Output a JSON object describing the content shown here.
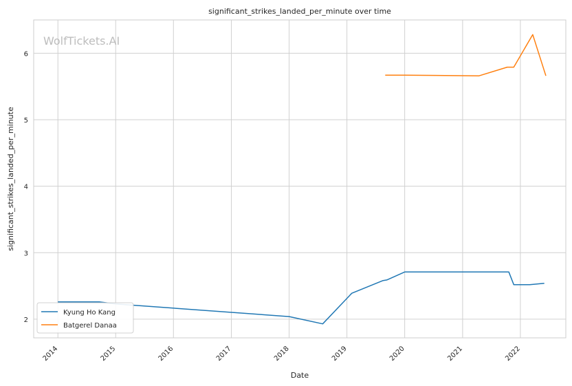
{
  "chart_data": {
    "type": "line",
    "title": "significant_strikes_landed_per_minute over time",
    "xlabel": "Date",
    "ylabel": "significant_strikes_landed_per_minute",
    "xlim": [
      "2013-08-01",
      "2022-10-15"
    ],
    "ylim": [
      1.72,
      6.5
    ],
    "x_ticks": [
      "2014",
      "2015",
      "2016",
      "2017",
      "2018",
      "2019",
      "2020",
      "2021",
      "2022"
    ],
    "y_ticks": [
      2,
      3,
      4,
      5,
      6
    ],
    "grid": true,
    "legend_position": "lower-left",
    "watermark": "WolfTickets.AI",
    "series": [
      {
        "name": "Kyung Ho Kang",
        "color": "#1f77b4",
        "points": [
          [
            "2014-01-01",
            2.26
          ],
          [
            "2014-09-20",
            2.26
          ],
          [
            "2015-01-01",
            2.23
          ],
          [
            "2018-01-01",
            2.04
          ],
          [
            "2018-08-01",
            1.93
          ],
          [
            "2019-02-01",
            2.39
          ],
          [
            "2019-08-15",
            2.58
          ],
          [
            "2019-09-10",
            2.59
          ],
          [
            "2020-01-01",
            2.71
          ],
          [
            "2021-10-20",
            2.71
          ],
          [
            "2021-11-20",
            2.52
          ],
          [
            "2022-03-01",
            2.52
          ],
          [
            "2022-06-01",
            2.54
          ]
        ]
      },
      {
        "name": "Batgerel Danaa",
        "color": "#ff7f0e",
        "points": [
          [
            "2019-08-31",
            5.67
          ],
          [
            "2020-01-01",
            5.67
          ],
          [
            "2021-04-15",
            5.66
          ],
          [
            "2021-10-10",
            5.79
          ],
          [
            "2021-11-20",
            5.79
          ],
          [
            "2022-03-20",
            6.28
          ],
          [
            "2022-06-11",
            5.66
          ]
        ]
      }
    ]
  }
}
